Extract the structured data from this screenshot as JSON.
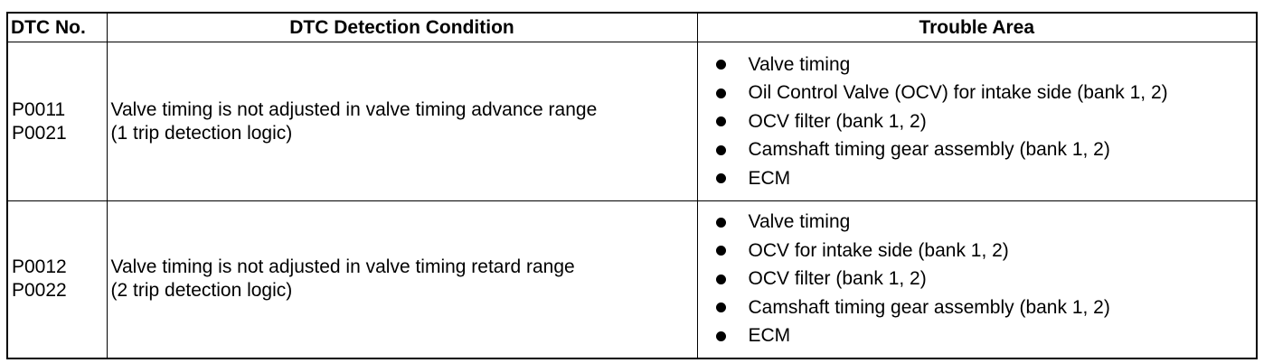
{
  "table": {
    "headers": [
      "DTC No.",
      "DTC Detection Condition",
      "Trouble Area"
    ],
    "rows": [
      {
        "dtc": [
          "P0011",
          "P0021"
        ],
        "condition": [
          "Valve timing is not adjusted in valve timing advance range",
          "(1 trip detection logic)"
        ],
        "trouble_areas": [
          "Valve timing",
          "Oil Control Valve (OCV) for intake side (bank 1, 2)",
          "OCV filter (bank 1, 2)",
          "Camshaft timing gear assembly (bank 1, 2)",
          "ECM"
        ]
      },
      {
        "dtc": [
          "P0012",
          "P0022"
        ],
        "condition": [
          "Valve timing is not adjusted in valve timing retard range",
          "(2 trip detection logic)"
        ],
        "trouble_areas": [
          "Valve timing",
          "OCV for intake side (bank 1, 2)",
          "OCV filter (bank 1, 2)",
          "Camshaft timing gear assembly (bank 1, 2)",
          "ECM"
        ]
      }
    ]
  }
}
